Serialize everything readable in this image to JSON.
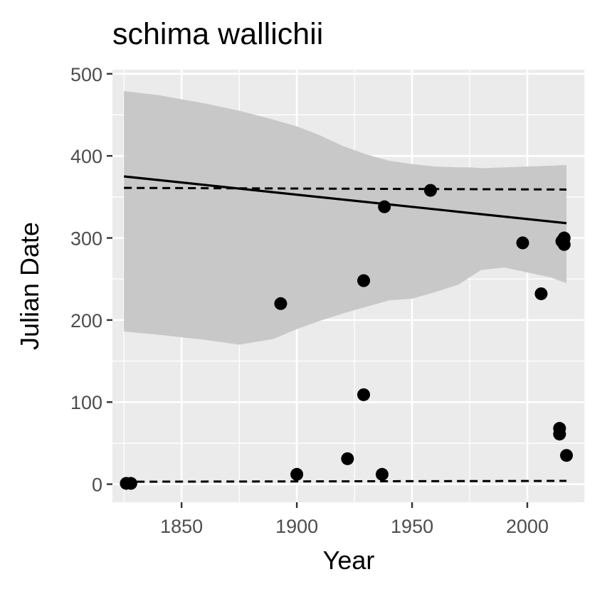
{
  "chart_data": {
    "type": "scatter",
    "title": "schima wallichii",
    "xlabel": "Year",
    "ylabel": "Julian Date",
    "xlim": [
      1820,
      2025
    ],
    "ylim": [
      -22,
      505
    ],
    "x_ticks": [
      1850,
      1900,
      1950,
      2000
    ],
    "y_ticks": [
      0,
      100,
      200,
      300,
      400,
      500
    ],
    "grid": true,
    "colors": {
      "panel": "#ebebeb",
      "grid": "#ffffff",
      "band": "#c8c8c8",
      "points": "#000000",
      "trend": "#000000"
    },
    "points": [
      {
        "x": 1826,
        "y": 1
      },
      {
        "x": 1828,
        "y": 1
      },
      {
        "x": 1893,
        "y": 220
      },
      {
        "x": 1900,
        "y": 12
      },
      {
        "x": 1922,
        "y": 31
      },
      {
        "x": 1929,
        "y": 248
      },
      {
        "x": 1929,
        "y": 109
      },
      {
        "x": 1937,
        "y": 12
      },
      {
        "x": 1938,
        "y": 338
      },
      {
        "x": 1958,
        "y": 358
      },
      {
        "x": 1998,
        "y": 294
      },
      {
        "x": 2006,
        "y": 232
      },
      {
        "x": 2014,
        "y": 68
      },
      {
        "x": 2014,
        "y": 61
      },
      {
        "x": 2015,
        "y": 296
      },
      {
        "x": 2016,
        "y": 300
      },
      {
        "x": 2016,
        "y": 292
      },
      {
        "x": 2017,
        "y": 35
      }
    ],
    "trend_line": {
      "x": [
        1825,
        2017
      ],
      "y": [
        375,
        318
      ]
    },
    "confidence_band": {
      "x": [
        1825,
        1840,
        1860,
        1875,
        1890,
        1900,
        1910,
        1920,
        1930,
        1940,
        1950,
        1960,
        1970,
        1975,
        1980,
        1990,
        2000,
        2010,
        2017
      ],
      "upper": [
        479,
        474,
        464,
        455,
        444,
        436,
        425,
        412,
        402,
        394,
        390,
        387,
        386,
        386,
        385,
        386,
        387,
        388,
        389
      ],
      "lower": [
        186,
        182,
        176,
        170,
        177,
        189,
        199,
        208,
        216,
        224,
        226,
        234,
        243,
        252,
        261,
        264,
        258,
        252,
        245
      ]
    },
    "dashed_upper": {
      "x": [
        1825,
        2017
      ],
      "y": [
        361,
        359
      ]
    },
    "dashed_lower": {
      "x": [
        1825,
        2017
      ],
      "y": [
        3,
        4
      ]
    }
  }
}
